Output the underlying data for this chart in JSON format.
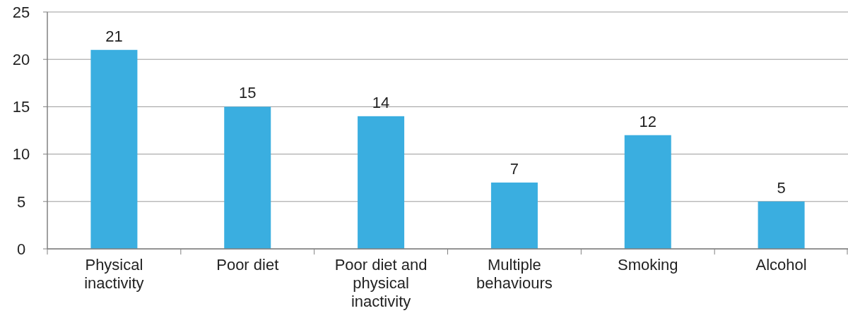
{
  "chart_data": {
    "type": "bar",
    "categories": [
      "Physical inactivity",
      "Poor diet",
      "Poor diet and physical inactivity",
      "Multiple behaviours",
      "Smoking",
      "Alcohol"
    ],
    "values": [
      21,
      15,
      14,
      7,
      12,
      5
    ],
    "color": "#3aaee0",
    "ylim": [
      0,
      25
    ],
    "yticks": [
      0,
      5,
      10,
      15,
      20,
      25
    ],
    "grid": "y",
    "data_labels": true
  }
}
